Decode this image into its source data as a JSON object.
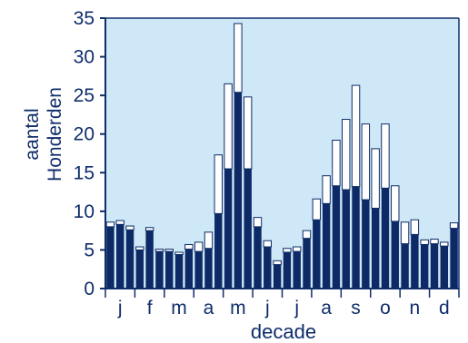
{
  "chart_data": {
    "type": "bar",
    "stacked": true,
    "title": "",
    "xlabel": "decade",
    "ylabel_lines": [
      "aantal",
      "Honderden"
    ],
    "ylim": [
      0,
      35
    ],
    "yticks": [
      0,
      5,
      10,
      15,
      20,
      25,
      30,
      35
    ],
    "month_labels": [
      "j",
      "f",
      "m",
      "a",
      "m",
      "j",
      "j",
      "a",
      "s",
      "o",
      "n",
      "d"
    ],
    "decades_per_month": 3,
    "grid": false,
    "colors": {
      "plot_background": "#cfe8f7",
      "axis": "#0f2d6b",
      "lower_segment": "#0d2a66",
      "upper_segment": "#ffffff",
      "bar_outline": "#0d2a66"
    },
    "series": [
      {
        "values": [
          8.0,
          8.3,
          7.6,
          5.0,
          7.5,
          4.8,
          4.8,
          4.4,
          5.1,
          4.8,
          5.2,
          9.7,
          15.5,
          25.4,
          15.5,
          8.0,
          5.4,
          3.1,
          4.7,
          4.8,
          6.5,
          8.9,
          11.0,
          13.3,
          12.8,
          13.2,
          11.5,
          10.4,
          13.0,
          8.7,
          5.8,
          7.0,
          5.7,
          5.8,
          5.5,
          7.8
        ]
      },
      {
        "values": [
          0.6,
          0.5,
          0.5,
          0.4,
          0.4,
          0.3,
          0.3,
          0.3,
          0.6,
          1.2,
          2.1,
          7.6,
          11.0,
          8.9,
          9.3,
          1.2,
          0.8,
          0.5,
          0.5,
          0.6,
          1.0,
          2.7,
          3.6,
          5.9,
          9.1,
          13.1,
          9.8,
          7.7,
          8.3,
          4.6,
          2.8,
          1.9,
          0.6,
          0.6,
          0.5,
          0.7
        ]
      }
    ]
  }
}
